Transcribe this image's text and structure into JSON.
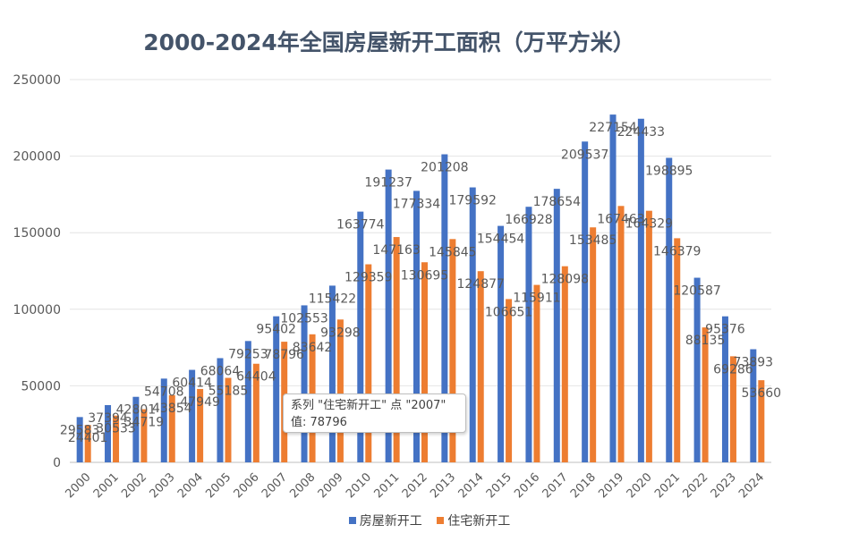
{
  "chart_data": {
    "type": "bar",
    "title": "2000-2024年全国房屋新开工面积（万平方米）",
    "xlabel": "",
    "ylabel": "",
    "ylim": [
      0,
      250000
    ],
    "yticks": [
      "0",
      "50000",
      "100000",
      "150000",
      "200000",
      "250000"
    ],
    "categories": [
      "2000",
      "2001",
      "2002",
      "2003",
      "2004",
      "2005",
      "2006",
      "2007",
      "2008",
      "2009",
      "2010",
      "2011",
      "2012",
      "2013",
      "2014",
      "2015",
      "2016",
      "2017",
      "2018",
      "2019",
      "2020",
      "2021",
      "2022",
      "2023",
      "2024"
    ],
    "series": [
      {
        "name": "房屋新开工",
        "color": "#4472c4",
        "values": [
          29583,
          37394,
          42801,
          54708,
          60414,
          68064,
          79253,
          95402,
          102553,
          115422,
          163774,
          191237,
          177334,
          201208,
          179592,
          154454,
          166928,
          178654,
          209537,
          227154,
          224433,
          198895,
          120587,
          95376,
          73893
        ]
      },
      {
        "name": "住宅新开工",
        "color": "#ed7d31",
        "values": [
          24401,
          30533,
          34719,
          43854,
          47949,
          55185,
          64404,
          78796,
          83642,
          93298,
          129359,
          147163,
          130695,
          145845,
          124877,
          106651,
          115911,
          128098,
          153485,
          167463,
          164329,
          146379,
          88135,
          69286,
          53660
        ]
      }
    ],
    "grid": true,
    "legend_position": "bottom"
  },
  "tooltip": {
    "line1": "系列 \"住宅新开工\" 点 \"2007\"",
    "line2": "值: 78796"
  }
}
